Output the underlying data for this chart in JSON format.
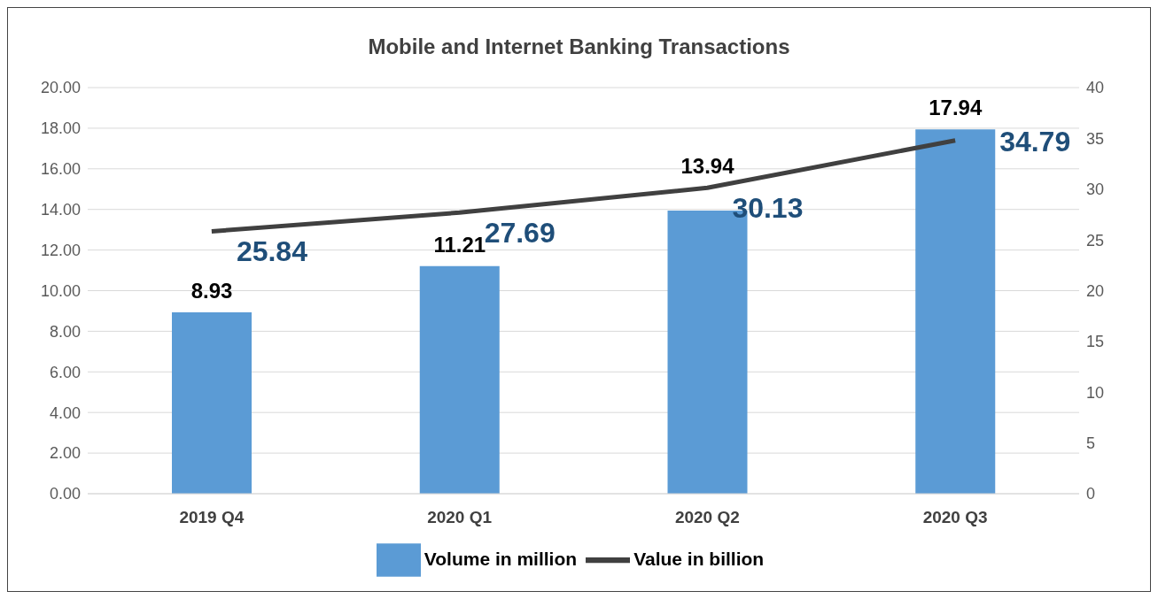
{
  "chart_data": {
    "type": "bar",
    "title": "Mobile and Internet Banking Transactions",
    "categories": [
      "2019 Q4",
      "2020 Q1",
      "2020 Q2",
      "2020 Q3"
    ],
    "series": [
      {
        "name": "Volume in million",
        "color": "#5b9bd5",
        "values": [
          8.93,
          11.21,
          13.94,
          17.94
        ]
      },
      {
        "name": "Value in billion",
        "type": "line",
        "axis": "y2",
        "color": "#404040",
        "values": [
          25.84,
          27.69,
          30.13,
          34.79
        ]
      }
    ],
    "ylim": [
      0,
      20
    ],
    "yticks": [
      {
        "value": 0,
        "label": "0.00"
      },
      {
        "value": 2,
        "label": "2.00"
      },
      {
        "value": 4,
        "label": "4.00"
      },
      {
        "value": 6,
        "label": "6.00"
      },
      {
        "value": 8,
        "label": "8.00"
      },
      {
        "value": 10,
        "label": "10.00"
      },
      {
        "value": 12,
        "label": "12.00"
      },
      {
        "value": 14,
        "label": "14.00"
      },
      {
        "value": 16,
        "label": "16.00"
      },
      {
        "value": 18,
        "label": "18.00"
      },
      {
        "value": 20,
        "label": "20.00"
      }
    ],
    "y2lim": [
      0,
      40
    ],
    "y2ticks": [
      0,
      5,
      10,
      15,
      20,
      25,
      30,
      35,
      40
    ],
    "grid": "y",
    "legend": "bottom",
    "data_labels": true,
    "marker": "none",
    "line_style": "solid"
  }
}
